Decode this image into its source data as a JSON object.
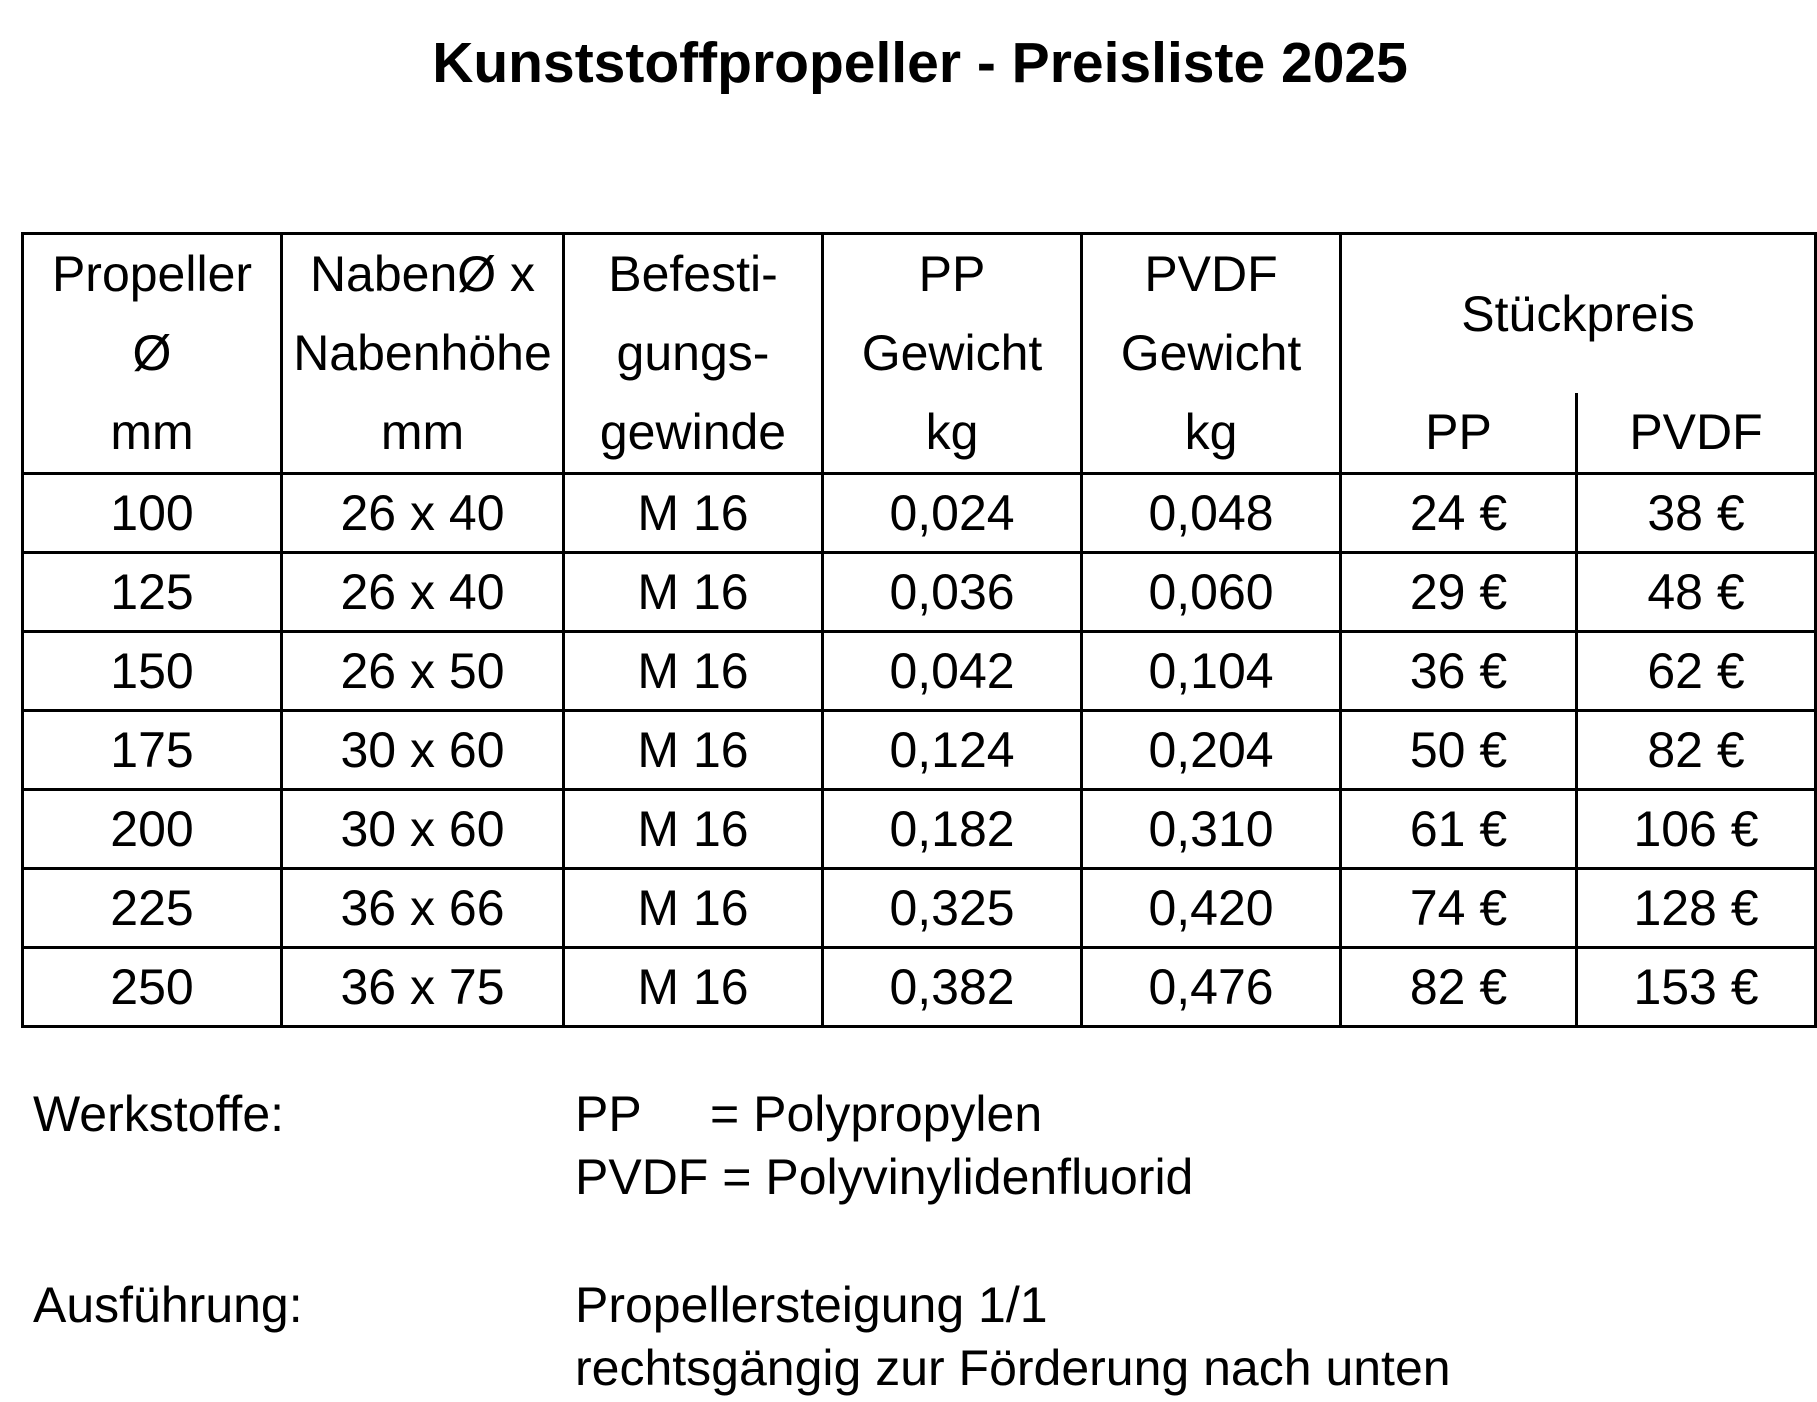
{
  "title": "Kunststoffpropeller - Preisliste 2025",
  "table": {
    "headers": {
      "diameter": [
        "Propeller",
        "Ø",
        "mm"
      ],
      "hub": [
        "NabenØ x",
        "Nabenhöhe",
        "mm"
      ],
      "thread": [
        "Befesti-",
        "gungs-",
        "gewinde"
      ],
      "pp_weight": [
        "PP",
        "Gewicht",
        "kg"
      ],
      "pvdf_weight": [
        "PVDF",
        "Gewicht",
        "kg"
      ],
      "unit_price": "Stückpreis",
      "unit_price_pp": "PP",
      "unit_price_pvdf": "PVDF"
    },
    "rows": [
      {
        "diameter": "100",
        "hub": "26 x 40",
        "thread": "M 16",
        "pp_weight": "0,024",
        "pvdf_weight": "0,048",
        "price_pp": "24 €",
        "price_pvdf": "38 €"
      },
      {
        "diameter": "125",
        "hub": "26 x 40",
        "thread": "M 16",
        "pp_weight": "0,036",
        "pvdf_weight": "0,060",
        "price_pp": "29 €",
        "price_pvdf": "48 €"
      },
      {
        "diameter": "150",
        "hub": "26 x 50",
        "thread": "M 16",
        "pp_weight": "0,042",
        "pvdf_weight": "0,104",
        "price_pp": "36 €",
        "price_pvdf": "62 €"
      },
      {
        "diameter": "175",
        "hub": "30 x 60",
        "thread": "M 16",
        "pp_weight": "0,124",
        "pvdf_weight": "0,204",
        "price_pp": "50 €",
        "price_pvdf": "82 €"
      },
      {
        "diameter": "200",
        "hub": "30 x 60",
        "thread": "M 16",
        "pp_weight": "0,182",
        "pvdf_weight": "0,310",
        "price_pp": "61 €",
        "price_pvdf": "106 €"
      },
      {
        "diameter": "225",
        "hub": "36 x 66",
        "thread": "M 16",
        "pp_weight": "0,325",
        "pvdf_weight": "0,420",
        "price_pp": "74 €",
        "price_pvdf": "128 €"
      },
      {
        "diameter": "250",
        "hub": "36 x 75",
        "thread": "M 16",
        "pp_weight": "0,382",
        "pvdf_weight": "0,476",
        "price_pp": "82 €",
        "price_pvdf": "153 €"
      }
    ]
  },
  "notes": {
    "materials_label": "Werkstoffe:",
    "materials": [
      {
        "abbr": "PP",
        "definition": "= Polypropylen"
      },
      {
        "abbr": "PVDF",
        "definition": "= Polyvinylidenfluorid"
      }
    ],
    "design_label": "Ausführung:",
    "design_lines": [
      "Propellersteigung 1/1",
      "rechtsgängig zur Förderung nach unten"
    ]
  }
}
